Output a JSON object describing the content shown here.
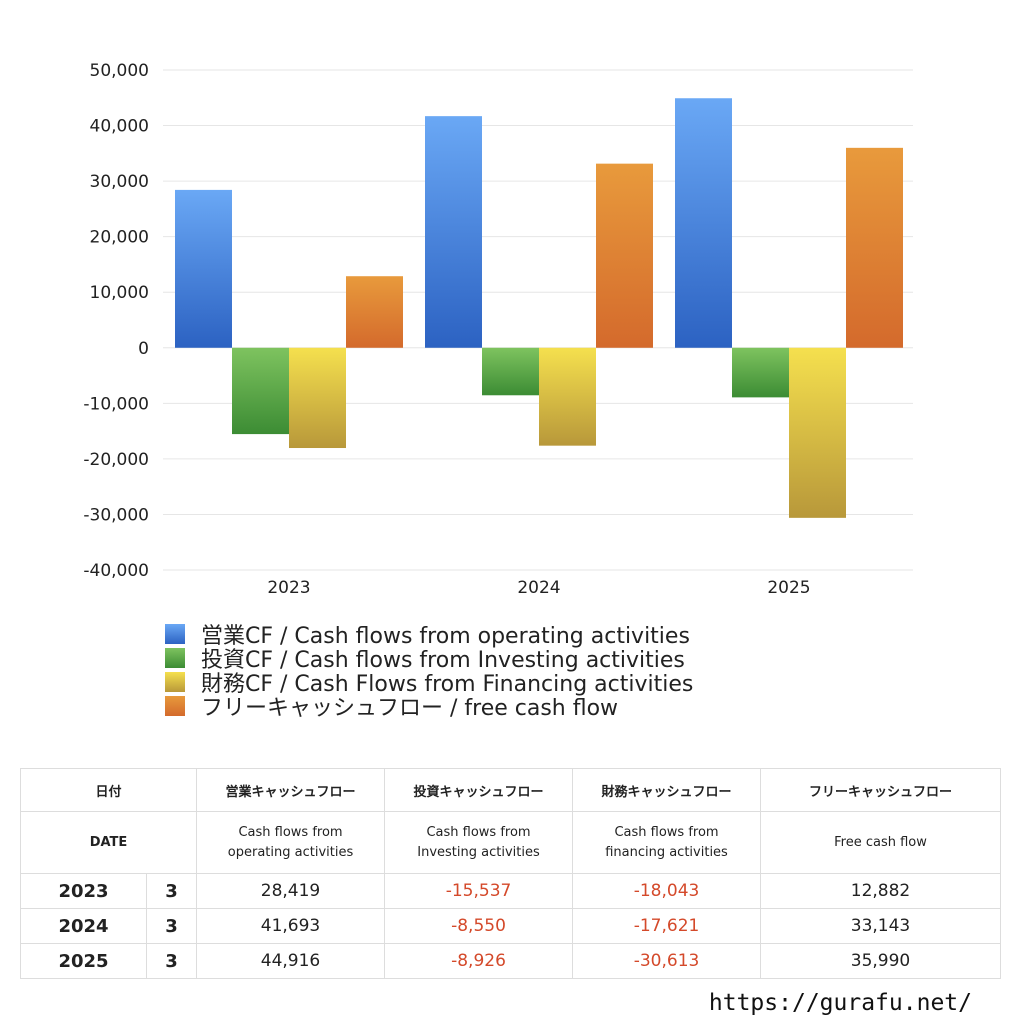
{
  "chart_data": {
    "type": "bar",
    "categories": [
      "2023",
      "2024",
      "2025"
    ],
    "series": [
      {
        "name": "営業CF / Cash flows from operating activities",
        "values": [
          28419,
          41693,
          44916
        ],
        "color_top": "#6aa8f5",
        "color_bottom": "#2c62c2"
      },
      {
        "name": "投資CF / Cash flows from Investing activities",
        "values": [
          -15537,
          -8550,
          -8926
        ],
        "color_top": "#7ec35f",
        "color_bottom": "#3c8c34"
      },
      {
        "name": "財務CF / Cash Flows from Financing activities",
        "values": [
          -18043,
          -17621,
          -30613
        ],
        "color_top": "#f5e04e",
        "color_bottom": "#b8983a"
      },
      {
        "name": "フリーキャッシュフロー / free cash flow",
        "values": [
          12882,
          33143,
          35990
        ],
        "color_top": "#e89a3c",
        "color_bottom": "#d46a2c"
      }
    ],
    "ylim": [
      -40000,
      50000
    ],
    "yticks": [
      50000,
      40000,
      30000,
      20000,
      10000,
      0,
      -10000,
      -20000,
      -30000,
      -40000
    ],
    "ytick_labels": [
      "50,000",
      "40,000",
      "30,000",
      "20,000",
      "10,000",
      "0",
      "-10,000",
      "-20,000",
      "-30,000",
      "-40,000"
    ],
    "grid": true,
    "legend_position": "bottom"
  },
  "table": {
    "header_jp": [
      "日付",
      "",
      "営業キャッシュフロー",
      "投資キャッシュフロー",
      "財務キャッシュフロー",
      "フリーキャッシュフロー"
    ],
    "date_label": "DATE",
    "header_en": [
      [
        "Cash flows from",
        "operating activities"
      ],
      [
        "Cash flows from",
        "Investing activities"
      ],
      [
        "Cash flows from",
        "financing activities"
      ],
      [
        "Free cash flow"
      ]
    ],
    "rows": [
      {
        "year": "2023",
        "month": "3",
        "op": "28,419",
        "inv": "-15,537",
        "fin": "-18,043",
        "fcf": "12,882"
      },
      {
        "year": "2024",
        "month": "3",
        "op": "41,693",
        "inv": "-8,550",
        "fin": "-17,621",
        "fcf": "33,143"
      },
      {
        "year": "2025",
        "month": "3",
        "op": "44,916",
        "inv": "-8,926",
        "fin": "-30,613",
        "fcf": "35,990"
      }
    ],
    "negative_color": "#d4492a"
  },
  "footer": {
    "url": "https://gurafu.net/"
  }
}
